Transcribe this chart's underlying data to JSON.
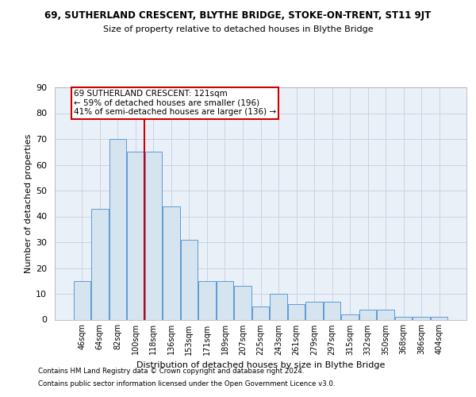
{
  "title_line1": "69, SUTHERLAND CRESCENT, BLYTHE BRIDGE, STOKE-ON-TRENT, ST11 9JT",
  "title_line2": "Size of property relative to detached houses in Blythe Bridge",
  "xlabel": "Distribution of detached houses by size in Blythe Bridge",
  "ylabel": "Number of detached properties",
  "categories": [
    "46sqm",
    "64sqm",
    "82sqm",
    "100sqm",
    "118sqm",
    "136sqm",
    "153sqm",
    "171sqm",
    "189sqm",
    "207sqm",
    "225sqm",
    "243sqm",
    "261sqm",
    "279sqm",
    "297sqm",
    "315sqm",
    "332sqm",
    "350sqm",
    "368sqm",
    "386sqm",
    "404sqm"
  ],
  "bar_values": [
    15,
    43,
    70,
    65,
    65,
    44,
    31,
    15,
    15,
    13,
    5,
    10,
    6,
    7,
    7,
    2,
    4,
    4,
    1,
    1,
    1
  ],
  "bar_color": "#d6e4f0",
  "bar_edge_color": "#5b9bd5",
  "red_line_x": 3.5,
  "annotation_text_line1": "69 SUTHERLAND CRESCENT: 121sqm",
  "annotation_text_line2": "← 59% of detached houses are smaller (196)",
  "annotation_text_line3": "41% of semi-detached houses are larger (136) →",
  "annotation_box_facecolor": "#ffffff",
  "annotation_box_edgecolor": "#cc0000",
  "red_line_color": "#cc0000",
  "grid_color": "#c8d4e4",
  "background_color": "#eaf0f8",
  "ylim": [
    0,
    90
  ],
  "yticks": [
    0,
    10,
    20,
    30,
    40,
    50,
    60,
    70,
    80,
    90
  ],
  "footer_line1": "Contains HM Land Registry data © Crown copyright and database right 2024.",
  "footer_line2": "Contains public sector information licensed under the Open Government Licence v3.0."
}
